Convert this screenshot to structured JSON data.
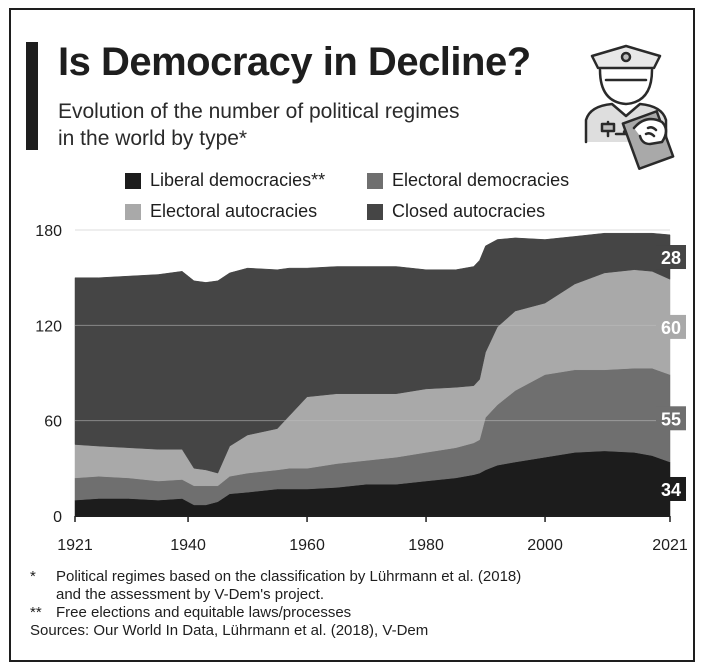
{
  "header": {
    "title": "Is Democracy in Decline?",
    "subtitle_line1": "Evolution of the number of political regimes",
    "subtitle_line2": "in the world by type*"
  },
  "legend": [
    {
      "label": "Liberal democracies**",
      "color": "#1c1c1c"
    },
    {
      "label": "Electoral democracies",
      "color": "#6f6f6f"
    },
    {
      "label": "Electoral autocracies",
      "color": "#a9a9a9"
    },
    {
      "label": "Closed autocracies",
      "color": "#454545"
    }
  ],
  "chart_data": {
    "type": "area",
    "stacked": true,
    "x": [
      1921,
      1925,
      1930,
      1935,
      1939,
      1941,
      1943,
      1945,
      1947,
      1950,
      1955,
      1957,
      1960,
      1965,
      1970,
      1975,
      1980,
      1985,
      1988,
      1989,
      1990,
      1992,
      1995,
      2000,
      2005,
      2010,
      2015,
      2018,
      2021
    ],
    "series": [
      {
        "name": "Liberal democracies**",
        "color": "#1c1c1c",
        "values": [
          10,
          11,
          11,
          10,
          11,
          7,
          7,
          9,
          14,
          15,
          17,
          17,
          17,
          18,
          20,
          20,
          22,
          24,
          26,
          27,
          29,
          32,
          34,
          37,
          40,
          41,
          40,
          38,
          34
        ]
      },
      {
        "name": "Electoral democracies",
        "color": "#6f6f6f",
        "values": [
          14,
          14,
          13,
          12,
          12,
          12,
          12,
          10,
          11,
          12,
          12,
          13,
          13,
          15,
          15,
          17,
          18,
          19,
          20,
          21,
          33,
          38,
          45,
          52,
          52,
          51,
          53,
          55,
          55
        ]
      },
      {
        "name": "Electoral autocracies",
        "color": "#a9a9a9",
        "values": [
          21,
          19,
          19,
          20,
          19,
          11,
          10,
          8,
          19,
          24,
          26,
          33,
          45,
          44,
          42,
          40,
          40,
          38,
          36,
          38,
          41,
          49,
          50,
          45,
          54,
          61,
          62,
          61,
          60
        ]
      },
      {
        "name": "Closed autocracies",
        "color": "#454545",
        "values": [
          105,
          106,
          108,
          110,
          112,
          118,
          118,
          121,
          109,
          105,
          100,
          93,
          81,
          80,
          80,
          80,
          75,
          74,
          75,
          75,
          67,
          55,
          46,
          40,
          30,
          25,
          23,
          24,
          28
        ]
      }
    ],
    "end_labels": [
      "34",
      "55",
      "60",
      "28"
    ],
    "xticks": [
      "1921",
      "1940",
      "1960",
      "1980",
      "2000",
      "2021"
    ],
    "yticks": [
      "0",
      "60",
      "120",
      "180"
    ],
    "xlim": [
      1921,
      2021
    ],
    "ylim": [
      0,
      180
    ],
    "grid": "horizontal"
  },
  "notes": [
    {
      "mark": "*",
      "text": "Political regimes based on the classification by Lührmann et al. (2018)"
    },
    {
      "mark": "",
      "text": "and the assessment by V-Dem's project."
    },
    {
      "mark": "**",
      "text": "Free elections and equitable laws/processes"
    },
    {
      "mark": "",
      "text": "Sources: Our World In Data, Lührmann et al. (2018), V-Dem"
    }
  ],
  "icons": {
    "illustration": "soldier-ballot-icon"
  }
}
